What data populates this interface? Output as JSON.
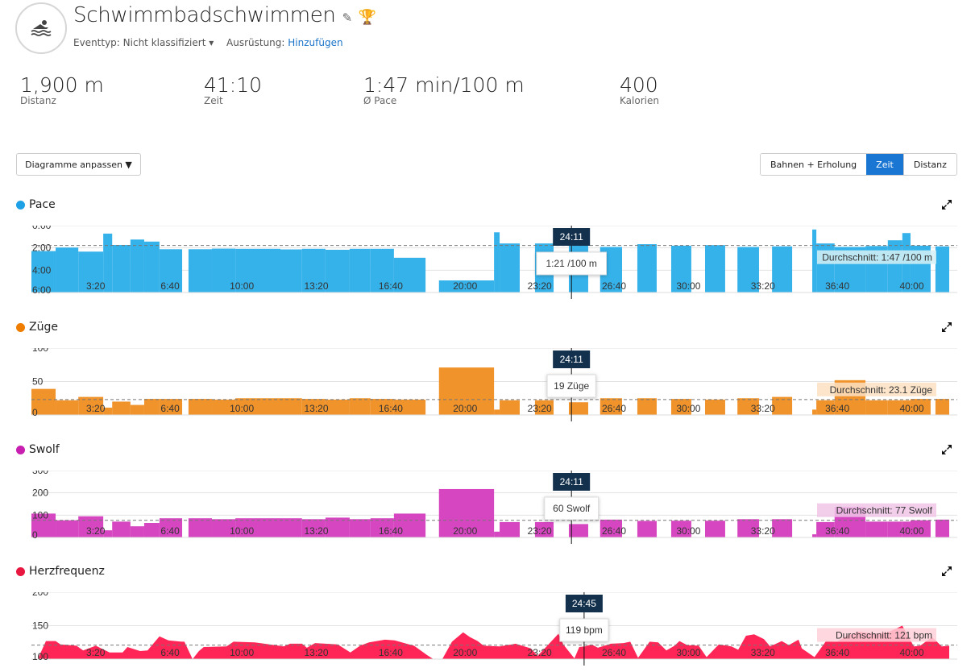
{
  "header": {
    "title": "Schwimmbadschwimmen",
    "eventtype_label": "Eventtyp:",
    "eventtype_value": "Nicht klassifiziert",
    "gear_label": "Ausrüstung:",
    "gear_link": "Hinzufügen",
    "icons": [
      "swim-icon",
      "pencil-icon",
      "trophy-icon"
    ],
    "trophy_color": "#e8751a"
  },
  "stats": [
    {
      "value": "1,900 m",
      "label": "Distanz"
    },
    {
      "value": "41:10",
      "label": "Zeit"
    },
    {
      "value": "1:47 min/100 m",
      "label": "Ø Pace"
    },
    {
      "value": "400",
      "label": "Kalorien"
    }
  ],
  "toolbar": {
    "customize_label": "Diagramme anpassen ▼",
    "views": [
      "Bahnen + Erholung",
      "Zeit",
      "Distanz"
    ],
    "active_view": "Zeit",
    "accent": "#1976d2"
  },
  "x_axis": {
    "tick_seconds": [
      200,
      400,
      600,
      800,
      1000,
      1200,
      1400,
      1600,
      1800,
      2000,
      2200,
      2400
    ],
    "tick_labels": [
      "3:20",
      "6:40",
      "10:00",
      "13:20",
      "16:40",
      "20:00",
      "23:20",
      "26:40",
      "30:00",
      "33:20",
      "36:40",
      "40:00"
    ],
    "max_seconds": 2466
  },
  "chart_data": [
    {
      "type": "bar",
      "title": "Pace",
      "color": "#36b2ea",
      "dot": "#1ea0e6",
      "ylim": [
        0,
        360
      ],
      "inverted": true,
      "yticks": [
        0,
        120,
        240,
        360
      ],
      "ytick_labels": [
        "0:00",
        "2:00",
        "4:00",
        "6:00"
      ],
      "segments": [
        [
          0,
          65,
          137
        ],
        [
          65,
          126,
          118
        ],
        [
          126,
          193,
          140
        ],
        [
          193,
          217,
          43
        ],
        [
          217,
          266,
          104
        ],
        [
          266,
          303,
          75
        ],
        [
          303,
          344,
          86
        ],
        [
          344,
          405,
          127
        ],
        [
          422,
          485,
          127
        ],
        [
          485,
          548,
          124
        ],
        [
          548,
          669,
          125
        ],
        [
          669,
          727,
          128
        ],
        [
          727,
          790,
          125
        ],
        [
          790,
          855,
          130
        ],
        [
          855,
          911,
          125
        ],
        [
          911,
          974,
          125
        ],
        [
          974,
          1059,
          173
        ],
        [
          1095,
          1243,
          295
        ],
        [
          1243,
          1258,
          36
        ],
        [
          1258,
          1312,
          96
        ],
        [
          1353,
          1403,
          96
        ],
        [
          1444,
          1496,
          81
        ],
        [
          1528,
          1587,
          115
        ],
        [
          1628,
          1680,
          100
        ],
        [
          1719,
          1773,
          108
        ],
        [
          1810,
          1864,
          105
        ],
        [
          1897,
          1955,
          115
        ],
        [
          1990,
          2044,
          112
        ],
        [
          2098,
          2109,
          21
        ],
        [
          2109,
          2158,
          96
        ],
        [
          2158,
          2241,
          115
        ],
        [
          2241,
          2301,
          110
        ],
        [
          2301,
          2340,
          79
        ],
        [
          2340,
          2362,
          40
        ],
        [
          2362,
          2416,
          108
        ],
        [
          2429,
          2466,
          112
        ]
      ],
      "avg": 107,
      "avg_label": "Durchschnitt: 1:47 /100 m",
      "avg_bg": "#d4f0f5",
      "cursor_time": 1451,
      "cursor_label": "24:11",
      "tooltip": "1:21 /100 m"
    },
    {
      "type": "bar",
      "title": "Züge",
      "color": "#f0932b",
      "dot": "#ef7d00",
      "ylim": [
        0,
        100
      ],
      "yticks": [
        0,
        50,
        100
      ],
      "ytick_labels": [
        "0",
        "50",
        "100"
      ],
      "segments": [
        [
          0,
          65,
          39
        ],
        [
          65,
          126,
          22
        ],
        [
          126,
          193,
          27
        ],
        [
          193,
          217,
          11
        ],
        [
          217,
          266,
          20
        ],
        [
          266,
          303,
          15
        ],
        [
          303,
          344,
          24
        ],
        [
          344,
          405,
          24
        ],
        [
          422,
          485,
          24
        ],
        [
          485,
          548,
          23
        ],
        [
          548,
          669,
          25
        ],
        [
          669,
          727,
          25
        ],
        [
          727,
          790,
          24
        ],
        [
          790,
          855,
          23
        ],
        [
          855,
          911,
          25
        ],
        [
          911,
          974,
          24
        ],
        [
          974,
          1059,
          23
        ],
        [
          1095,
          1243,
          71
        ],
        [
          1243,
          1258,
          8
        ],
        [
          1258,
          1312,
          22
        ],
        [
          1353,
          1403,
          22
        ],
        [
          1444,
          1496,
          19
        ],
        [
          1528,
          1587,
          25
        ],
        [
          1628,
          1680,
          25
        ],
        [
          1719,
          1773,
          24
        ],
        [
          1810,
          1864,
          23
        ],
        [
          1897,
          1955,
          25
        ],
        [
          1990,
          2044,
          27
        ],
        [
          2098,
          2109,
          8
        ],
        [
          2109,
          2158,
          22
        ],
        [
          2158,
          2241,
          52
        ],
        [
          2241,
          2301,
          22
        ],
        [
          2301,
          2340,
          22
        ],
        [
          2340,
          2362,
          22
        ],
        [
          2362,
          2416,
          24
        ],
        [
          2429,
          2466,
          24
        ]
      ],
      "avg": 23.1,
      "avg_label": "Durchschnitt: 23.1 Züge",
      "avg_bg": "#fbe0c2",
      "cursor_time": 1451,
      "cursor_label": "24:11",
      "tooltip": "19 Züge"
    },
    {
      "type": "bar",
      "title": "Swolf",
      "color": "#d646c0",
      "dot": "#c81fb0",
      "ylim": [
        0,
        300
      ],
      "yticks": [
        0,
        100,
        200,
        300
      ],
      "ytick_labels": [
        "0",
        "100",
        "200",
        "300"
      ],
      "segments": [
        [
          0,
          65,
          107
        ],
        [
          65,
          126,
          77
        ],
        [
          126,
          193,
          95
        ],
        [
          193,
          217,
          32
        ],
        [
          217,
          266,
          71
        ],
        [
          266,
          303,
          50
        ],
        [
          303,
          344,
          65
        ],
        [
          344,
          405,
          86
        ],
        [
          422,
          485,
          86
        ],
        [
          485,
          548,
          82
        ],
        [
          548,
          669,
          86
        ],
        [
          669,
          727,
          86
        ],
        [
          727,
          790,
          82
        ],
        [
          790,
          855,
          89
        ],
        [
          855,
          911,
          82
        ],
        [
          911,
          974,
          86
        ],
        [
          974,
          1059,
          107
        ],
        [
          1095,
          1243,
          217
        ],
        [
          1243,
          1258,
          26
        ],
        [
          1258,
          1312,
          69
        ],
        [
          1353,
          1403,
          69
        ],
        [
          1444,
          1496,
          60
        ],
        [
          1528,
          1587,
          80
        ],
        [
          1628,
          1680,
          74
        ],
        [
          1719,
          1773,
          75
        ],
        [
          1810,
          1864,
          75
        ],
        [
          1897,
          1955,
          82
        ],
        [
          1990,
          2044,
          82
        ],
        [
          2098,
          2109,
          14
        ],
        [
          2109,
          2158,
          69
        ],
        [
          2158,
          2241,
          137
        ],
        [
          2241,
          2301,
          71
        ],
        [
          2301,
          2340,
          71
        ],
        [
          2340,
          2362,
          71
        ],
        [
          2362,
          2416,
          77
        ],
        [
          2429,
          2466,
          80
        ]
      ],
      "avg": 77,
      "avg_label": "Durchschnitt: 77 Swolf",
      "avg_bg": "#f0c6e8",
      "cursor_time": 1451,
      "cursor_label": "24:11",
      "tooltip": "60 Swolf"
    },
    {
      "type": "area",
      "title": "Herzfrequenz",
      "color": "#ff2556",
      "dot": "#e8173f",
      "ylim": [
        100,
        200
      ],
      "yticks": [
        100,
        150,
        200
      ],
      "ytick_labels": [
        "100",
        "150",
        "200"
      ],
      "points": [
        [
          17,
          100
        ],
        [
          39,
          127
        ],
        [
          65,
          127
        ],
        [
          78,
          122
        ],
        [
          121,
          120
        ],
        [
          139,
          113
        ],
        [
          173,
          120
        ],
        [
          210,
          110
        ],
        [
          245,
          110
        ],
        [
          258,
          118
        ],
        [
          292,
          112
        ],
        [
          312,
          113
        ],
        [
          344,
          134
        ],
        [
          368,
          128
        ],
        [
          403,
          126
        ],
        [
          411,
          126
        ],
        [
          433,
          100
        ],
        [
          450,
          112
        ],
        [
          463,
          118
        ],
        [
          524,
          119
        ],
        [
          543,
          126
        ],
        [
          600,
          125
        ],
        [
          626,
          123
        ],
        [
          678,
          119
        ],
        [
          695,
          123
        ],
        [
          727,
          123
        ],
        [
          740,
          117
        ],
        [
          762,
          124
        ],
        [
          823,
          122
        ],
        [
          857,
          110
        ],
        [
          883,
          120
        ],
        [
          907,
          125
        ],
        [
          950,
          129
        ],
        [
          976,
          128
        ],
        [
          1028,
          120
        ],
        [
          1063,
          106
        ],
        [
          1080,
          100
        ],
        [
          1104,
          100
        ],
        [
          1130,
          126
        ],
        [
          1160,
          140
        ],
        [
          1178,
          133
        ],
        [
          1199,
          127
        ],
        [
          1215,
          120
        ],
        [
          1258,
          119
        ],
        [
          1301,
          123
        ],
        [
          1342,
          116
        ],
        [
          1360,
          105
        ],
        [
          1386,
          120
        ],
        [
          1416,
          138
        ],
        [
          1429,
          122
        ],
        [
          1459,
          101
        ],
        [
          1472,
          118
        ],
        [
          1487,
          119
        ],
        [
          1505,
          122
        ],
        [
          1522,
          117
        ],
        [
          1557,
          123
        ],
        [
          1591,
          124
        ],
        [
          1609,
          126
        ],
        [
          1630,
          102
        ],
        [
          1661,
          126
        ],
        [
          1684,
          125
        ],
        [
          1706,
          113
        ],
        [
          1728,
          120
        ],
        [
          1741,
          127
        ],
        [
          1762,
          121
        ],
        [
          1793,
          120
        ],
        [
          1814,
          103
        ],
        [
          1847,
          122
        ],
        [
          1881,
          119
        ],
        [
          1899,
          114
        ],
        [
          1920,
          135
        ],
        [
          1942,
          137
        ],
        [
          1968,
          130
        ],
        [
          1985,
          119
        ],
        [
          2016,
          127
        ],
        [
          2035,
          121
        ],
        [
          2061,
          129
        ],
        [
          2070,
          116
        ],
        [
          2104,
          103
        ],
        [
          2135,
          127
        ],
        [
          2165,
          126
        ],
        [
          2191,
          135
        ],
        [
          2223,
          141
        ],
        [
          2267,
          138
        ],
        [
          2301,
          140
        ],
        [
          2340,
          150
        ],
        [
          2371,
          119
        ],
        [
          2388,
          120
        ],
        [
          2420,
          133
        ],
        [
          2446,
          119
        ],
        [
          2466,
          120
        ]
      ],
      "avg": 121,
      "avg_label": "Durchschnitt: 121 bpm",
      "avg_bg": "#ffd0d8",
      "cursor_time": 1485,
      "cursor_label": "24:45",
      "tooltip": "119 bpm"
    }
  ]
}
